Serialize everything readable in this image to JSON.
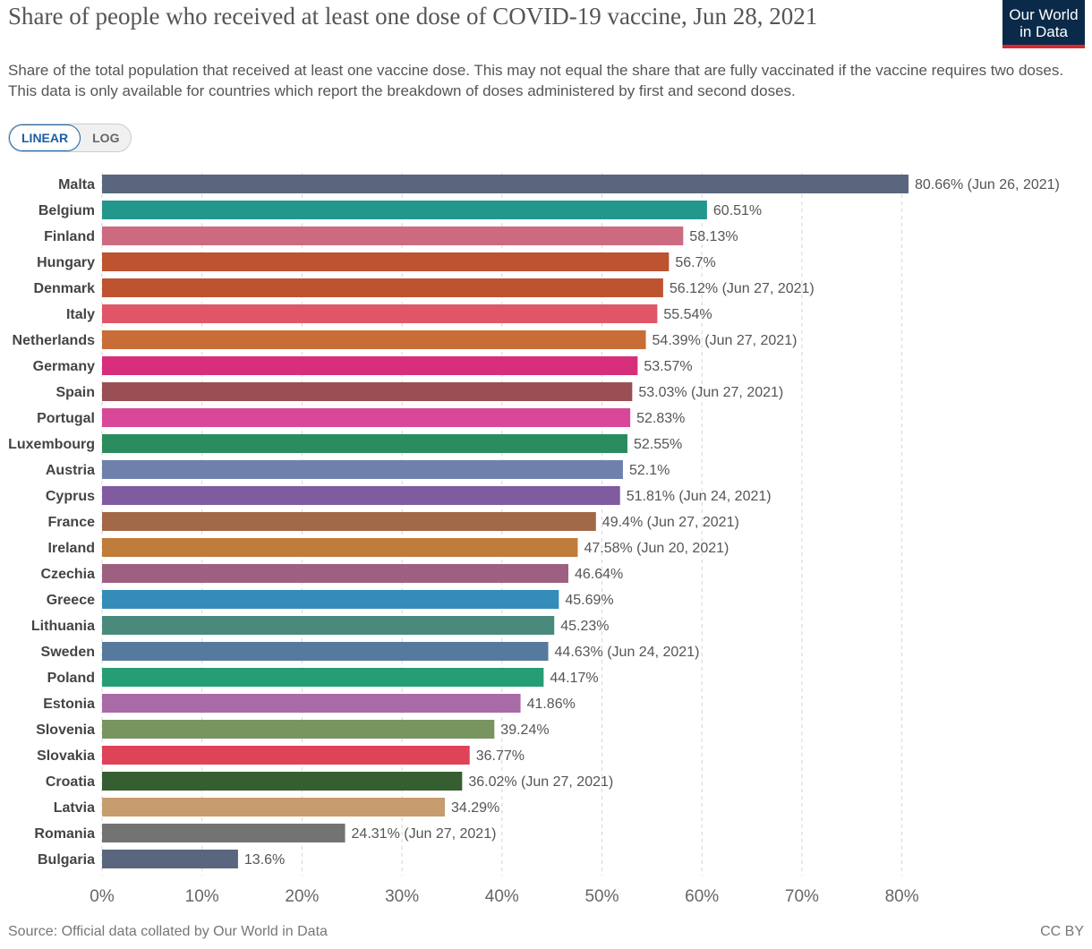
{
  "header": {
    "title": "Share of people who received at least one dose of COVID-19 vaccine, Jun 28, 2021",
    "subtitle": "Share of the total population that received at least one vaccine dose. This may not equal the share that are fully vaccinated if the vaccine requires two doses. This data is only available for countries which report the breakdown of doses administered by first and second doses.",
    "logo_line1": "Our World",
    "logo_line2": "in Data"
  },
  "controls": {
    "linear_label": "LINEAR",
    "log_label": "LOG"
  },
  "footer": {
    "source": "Source: Official data collated by Our World in Data",
    "license": "CC BY"
  },
  "chart_data": {
    "type": "bar",
    "orientation": "horizontal",
    "title": "Share of people who received at least one dose of COVID-19 vaccine, Jun 28, 2021",
    "xlim": [
      0,
      80
    ],
    "xticks": [
      "0%",
      "10%",
      "20%",
      "30%",
      "40%",
      "50%",
      "60%",
      "70%",
      "80%"
    ],
    "xtick_values": [
      0,
      10,
      20,
      30,
      40,
      50,
      60,
      70,
      80
    ],
    "grid": true,
    "categories": [
      "Malta",
      "Belgium",
      "Finland",
      "Hungary",
      "Denmark",
      "Italy",
      "Netherlands",
      "Germany",
      "Spain",
      "Portugal",
      "Luxembourg",
      "Austria",
      "Cyprus",
      "France",
      "Ireland",
      "Czechia",
      "Greece",
      "Lithuania",
      "Sweden",
      "Poland",
      "Estonia",
      "Slovenia",
      "Slovakia",
      "Croatia",
      "Latvia",
      "Romania",
      "Bulgaria"
    ],
    "values": [
      80.66,
      60.51,
      58.13,
      56.7,
      56.12,
      55.54,
      54.39,
      53.57,
      53.03,
      52.83,
      52.55,
      52.1,
      51.81,
      49.4,
      47.58,
      46.64,
      45.69,
      45.23,
      44.63,
      44.17,
      41.86,
      39.24,
      36.77,
      36.02,
      34.29,
      24.31,
      13.6
    ],
    "labels": [
      "80.66% (Jun 26, 2021)",
      "60.51%",
      "58.13%",
      "56.7%",
      "56.12% (Jun 27, 2021)",
      "55.54%",
      "54.39% (Jun 27, 2021)",
      "53.57%",
      "53.03% (Jun 27, 2021)",
      "52.83%",
      "52.55%",
      "52.1%",
      "51.81% (Jun 24, 2021)",
      "49.4% (Jun 27, 2021)",
      "47.58% (Jun 20, 2021)",
      "46.64%",
      "45.69%",
      "45.23%",
      "44.63% (Jun 24, 2021)",
      "44.17%",
      "41.86%",
      "39.24%",
      "36.77%",
      "36.02% (Jun 27, 2021)",
      "34.29%",
      "24.31% (Jun 27, 2021)",
      "13.6%"
    ],
    "colors": [
      "#59667d",
      "#24978d",
      "#cc6b80",
      "#bd5330",
      "#bd532f",
      "#e05668",
      "#c86d38",
      "#d72e7c",
      "#994f54",
      "#d94898",
      "#2a8c5e",
      "#6e81ad",
      "#805ba0",
      "#a36848",
      "#bf7c3a",
      "#9e6080",
      "#338db8",
      "#4a8a7c",
      "#557a9e",
      "#269e75",
      "#a96ba8",
      "#789560",
      "#de4358",
      "#365f31",
      "#c79c6e",
      "#737373",
      "#59667d"
    ]
  }
}
